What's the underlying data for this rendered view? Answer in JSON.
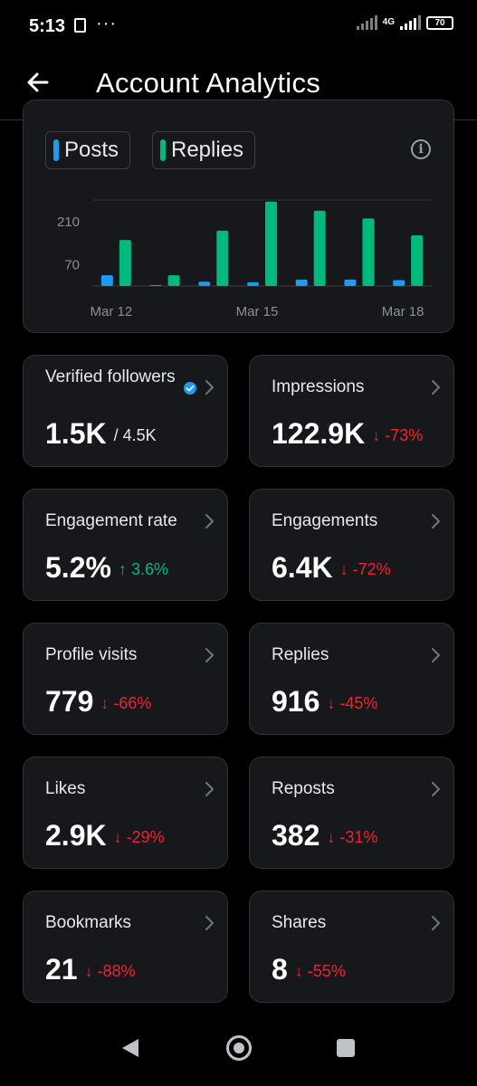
{
  "status_bar": {
    "time": "5:13",
    "network": "4G",
    "battery": "70"
  },
  "header": {
    "title": "Account Analytics"
  },
  "chart_data": {
    "type": "bar",
    "legend": [
      "Posts",
      "Replies"
    ],
    "categories": [
      "Mar 12",
      "Mar 13",
      "Mar 14",
      "Mar 15",
      "Mar 16",
      "Mar 17",
      "Mar 18"
    ],
    "x_tick_labels": [
      "Mar 12",
      "Mar 15",
      "Mar 18"
    ],
    "y_ticks": [
      70,
      210
    ],
    "ylim": [
      0,
      280
    ],
    "series": [
      {
        "name": "Posts",
        "color": "#1d9bf0",
        "values": [
          35,
          3,
          14,
          12,
          21,
          21,
          19
        ]
      },
      {
        "name": "Replies",
        "color": "#00ba7c",
        "values": [
          150,
          35,
          180,
          275,
          245,
          220,
          165
        ]
      }
    ],
    "grid": true
  },
  "stats": [
    {
      "label": "Verified followers",
      "value": "1.5K",
      "sub": "/ 4.5K",
      "verified": true
    },
    {
      "label": "Impressions",
      "value": "122.9K",
      "delta": "↓ -73%",
      "direction": "down"
    },
    {
      "label": "Engagement rate",
      "value": "5.2%",
      "delta": "↑ 3.6%",
      "direction": "up"
    },
    {
      "label": "Engagements",
      "value": "6.4K",
      "delta": "↓ -72%",
      "direction": "down"
    },
    {
      "label": "Profile visits",
      "value": "779",
      "delta": "↓ -66%",
      "direction": "down"
    },
    {
      "label": "Replies",
      "value": "916",
      "delta": "↓ -45%",
      "direction": "down"
    },
    {
      "label": "Likes",
      "value": "2.9K",
      "delta": "↓ -29%",
      "direction": "down"
    },
    {
      "label": "Reposts",
      "value": "382",
      "delta": "↓ -31%",
      "direction": "down"
    },
    {
      "label": "Bookmarks",
      "value": "21",
      "delta": "↓ -88%",
      "direction": "down"
    },
    {
      "label": "Shares",
      "value": "8",
      "delta": "↓ -55%",
      "direction": "down"
    }
  ],
  "icons": {
    "back": "arrow-left-icon",
    "info": "info-icon",
    "chevron": "chevron-right-icon",
    "verified": "verified-badge-icon"
  }
}
